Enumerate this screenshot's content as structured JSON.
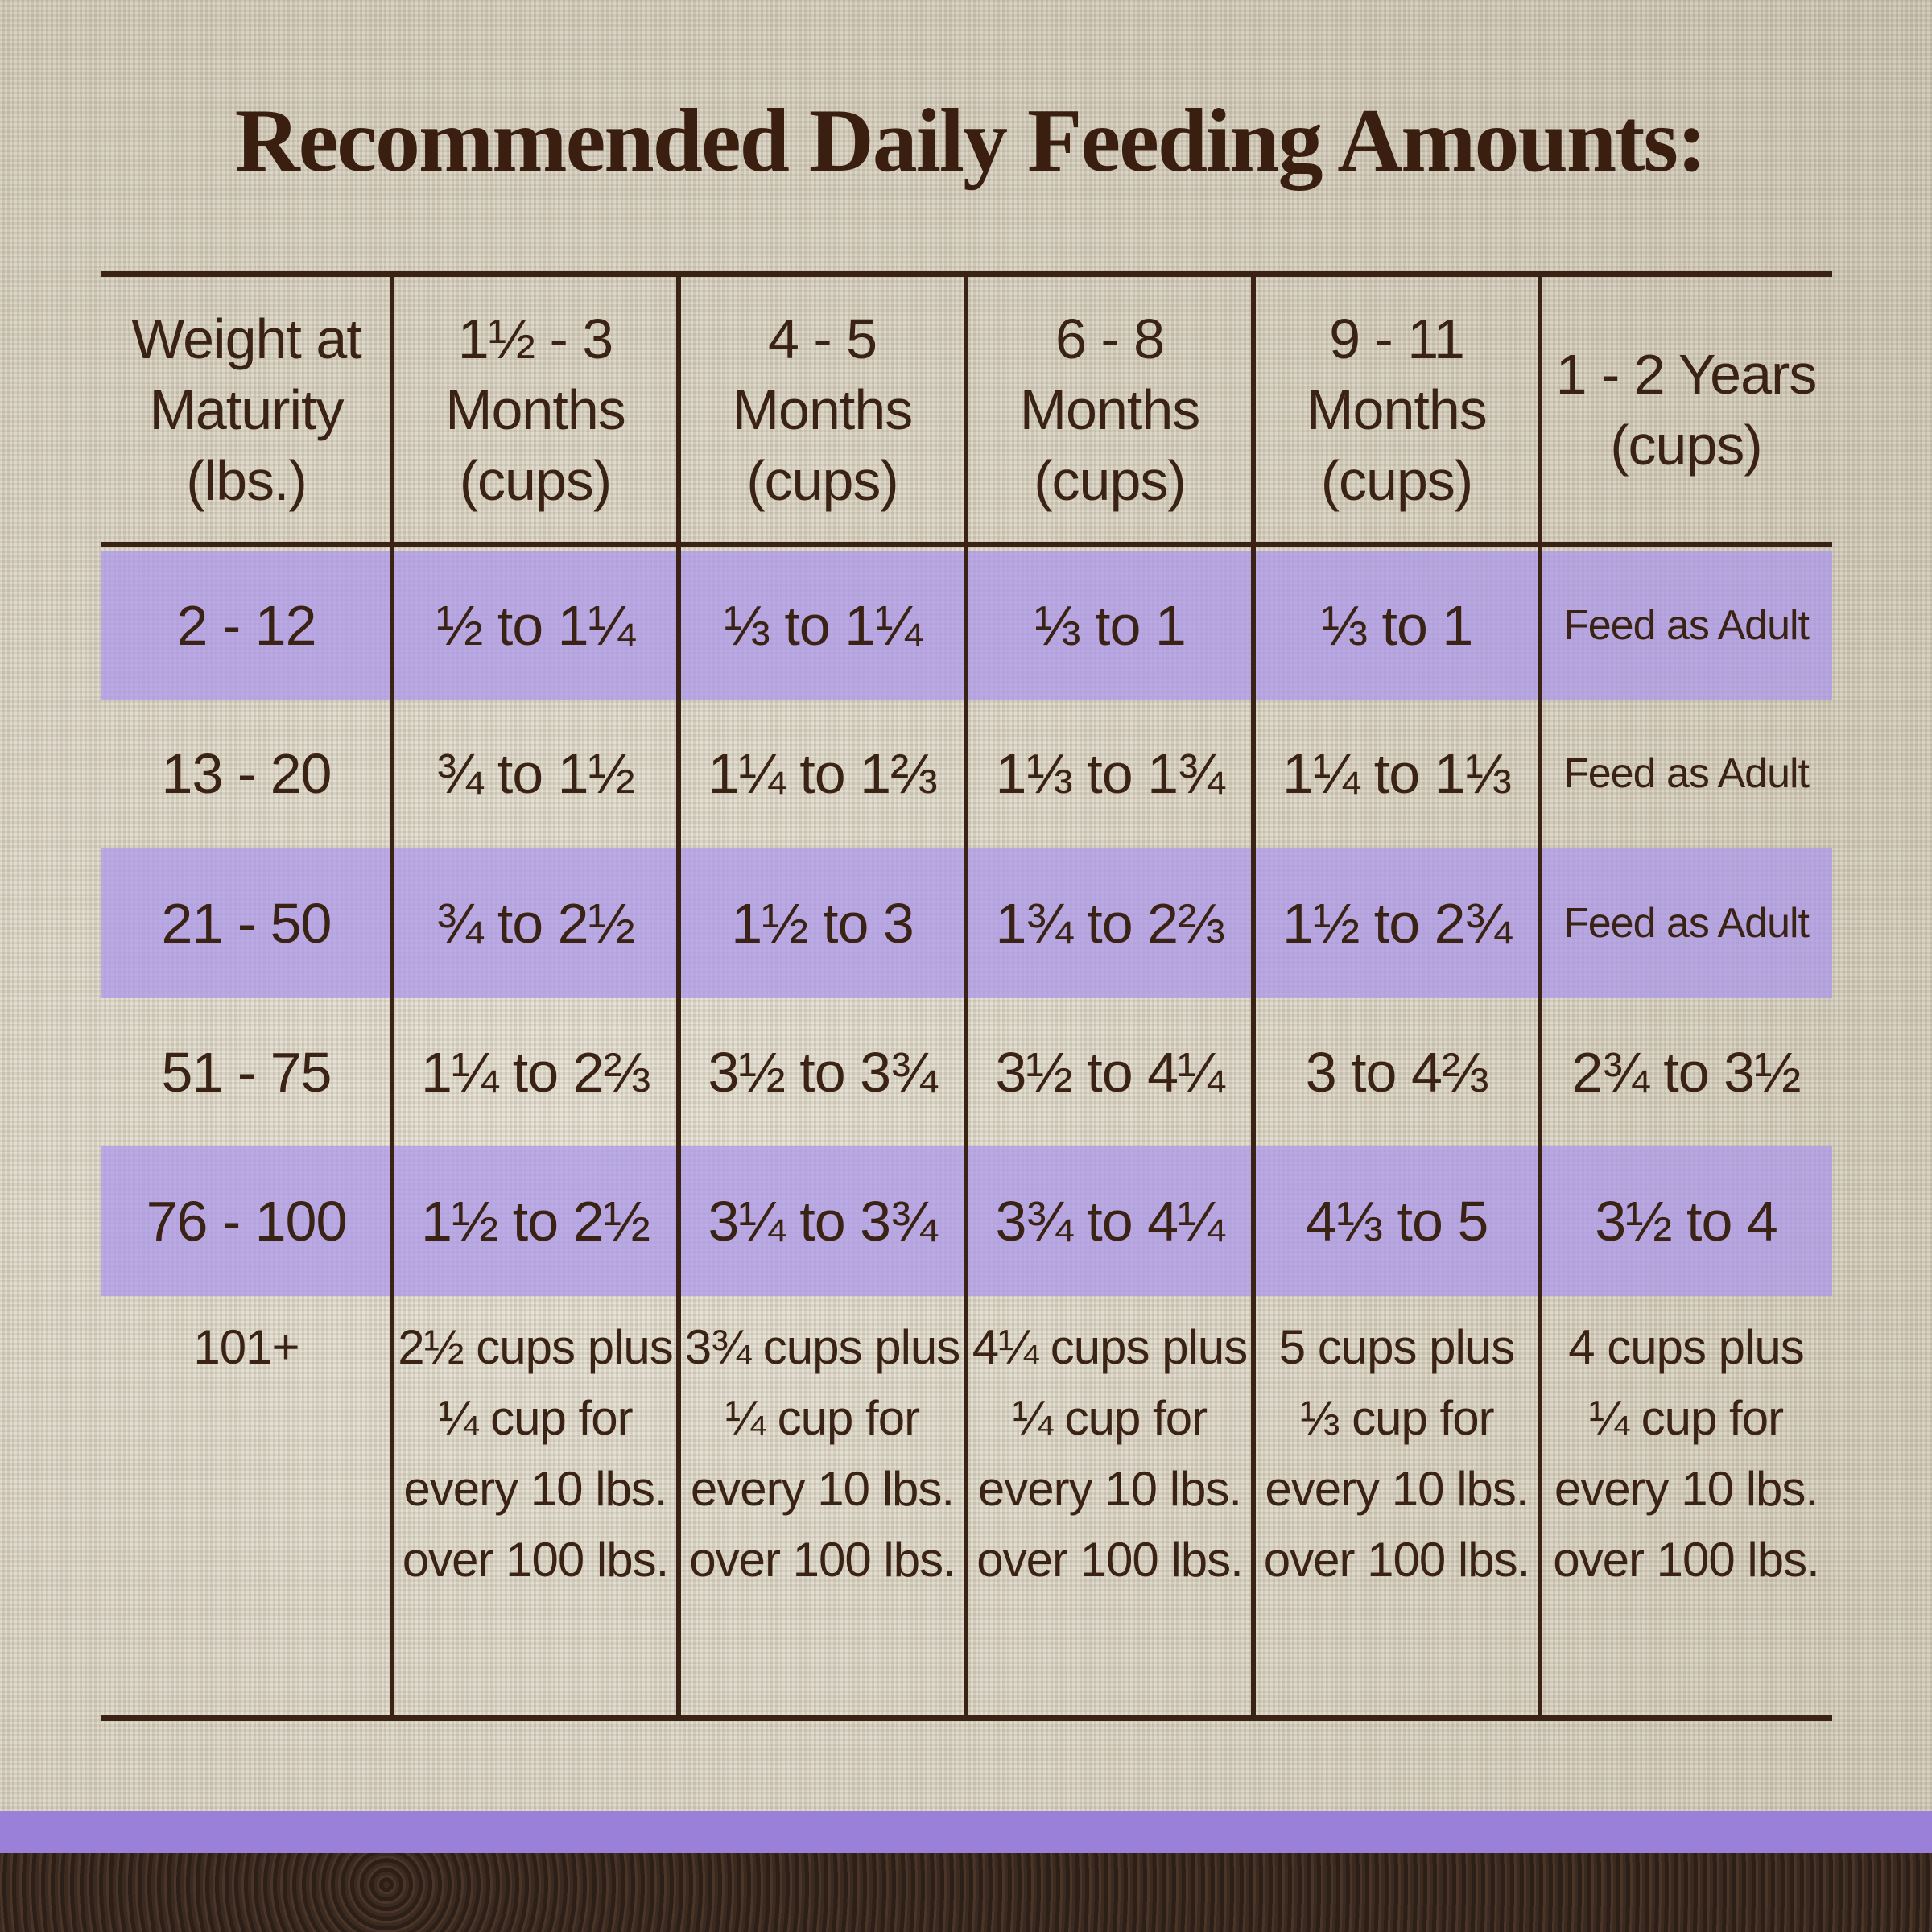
{
  "title": "Recommended Daily Feeding Amounts:",
  "colors": {
    "text": "#3a2314",
    "row_highlight": "#b9a9e6",
    "bottom_strip": "#9a80d8"
  },
  "table": {
    "headers": [
      "Weight at Maturity (lbs.)",
      "1½ - 3 Months (cups)",
      "4 - 5 Months (cups)",
      "6 - 8 Months (cups)",
      "9 - 11 Months (cups)",
      "1 - 2 Years (cups)"
    ],
    "rows": [
      [
        "2 - 12",
        "½ to 1¼",
        "⅓ to 1¼",
        "⅓ to 1",
        "⅓ to 1",
        "Feed as Adult"
      ],
      [
        "13 - 20",
        "¾ to 1½",
        "1¼ to 1⅔",
        "1⅓ to 1¾",
        "1¼ to 1⅓",
        "Feed as Adult"
      ],
      [
        "21 - 50",
        "¾ to 2½",
        "1½ to 3",
        "1¾ to 2⅔",
        "1½ to 2¾",
        "Feed as Adult"
      ],
      [
        "51 - 75",
        "1¼ to 2⅔",
        "3½ to 3¾",
        "3½ to 4¼",
        "3 to 4⅔",
        "2¾ to 3½"
      ],
      [
        "76 - 100",
        "1½ to 2½",
        "3¼ to 3¾",
        "3¾ to 4¼",
        "4⅓ to 5",
        "3½ to 4"
      ],
      [
        "101+",
        "2½ cups plus ¼ cup for every 10 lbs. over 100 lbs.",
        "3¾ cups plus ¼ cup for every 10 lbs. over 100 lbs.",
        "4¼ cups plus ¼ cup for every 10 lbs. over 100 lbs.",
        "5 cups plus ⅓ cup for every 10 lbs. over 100 lbs.",
        "4 cups plus ¼ cup for every 10 lbs. over 100 lbs."
      ]
    ]
  }
}
